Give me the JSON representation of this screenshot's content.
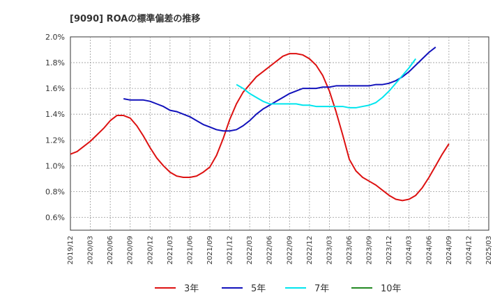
{
  "chart_data": {
    "type": "line",
    "title": "[9090]  ROAの標準偏差の推移",
    "xlabel": "",
    "ylabel": "",
    "ylim": [
      0.5,
      2.0
    ],
    "grid": true,
    "legend_position": "bottom",
    "y_ticks": [
      "0.6%",
      "0.8%",
      "1.0%",
      "1.2%",
      "1.4%",
      "1.6%",
      "1.8%",
      "2.0%"
    ],
    "x_ticks": [
      "2019/12",
      "2020/03",
      "2020/06",
      "2020/09",
      "2020/12",
      "2021/03",
      "2021/06",
      "2021/09",
      "2021/12",
      "2022/03",
      "2022/06",
      "2022/09",
      "2022/12",
      "2023/03",
      "2023/06",
      "2023/09",
      "2023/12",
      "2024/03",
      "2024/06",
      "2024/09",
      "2024/12",
      "2025/03"
    ],
    "series": [
      {
        "name": "3年",
        "color": "#dd1111",
        "start_index": 0,
        "values": [
          1.09,
          1.11,
          1.15,
          1.19,
          1.24,
          1.29,
          1.35,
          1.39,
          1.39,
          1.37,
          1.31,
          1.23,
          1.14,
          1.06,
          1.0,
          0.95,
          0.92,
          0.91,
          0.91,
          0.92,
          0.95,
          0.99,
          1.08,
          1.21,
          1.36,
          1.48,
          1.57,
          1.63,
          1.69,
          1.73,
          1.77,
          1.81,
          1.85,
          1.87,
          1.87,
          1.86,
          1.83,
          1.78,
          1.7,
          1.58,
          1.42,
          1.24,
          1.05,
          0.96,
          0.91,
          0.88,
          0.85,
          0.81,
          0.77,
          0.74,
          0.73,
          0.74,
          0.77,
          0.83,
          0.91,
          1.0,
          1.09,
          1.17
        ]
      },
      {
        "name": "5年",
        "color": "#1111bb",
        "start_index": 8,
        "values": [
          1.52,
          1.51,
          1.51,
          1.51,
          1.5,
          1.48,
          1.46,
          1.43,
          1.42,
          1.4,
          1.38,
          1.35,
          1.32,
          1.3,
          1.28,
          1.27,
          1.27,
          1.28,
          1.31,
          1.35,
          1.4,
          1.44,
          1.47,
          1.5,
          1.53,
          1.56,
          1.58,
          1.6,
          1.6,
          1.6,
          1.61,
          1.61,
          1.62,
          1.62,
          1.62,
          1.62,
          1.62,
          1.62,
          1.63,
          1.63,
          1.64,
          1.66,
          1.69,
          1.73,
          1.78,
          1.83,
          1.88,
          1.92
        ]
      },
      {
        "name": "7年",
        "color": "#00e5ee",
        "start_index": 25,
        "values": [
          1.63,
          1.6,
          1.56,
          1.53,
          1.5,
          1.48,
          1.48,
          1.48,
          1.48,
          1.48,
          1.47,
          1.47,
          1.46,
          1.46,
          1.46,
          1.46,
          1.46,
          1.45,
          1.45,
          1.46,
          1.47,
          1.49,
          1.53,
          1.58,
          1.64,
          1.7,
          1.76,
          1.83
        ]
      },
      {
        "name": "10年",
        "color": "#228822",
        "start_index": 0,
        "values": []
      }
    ]
  }
}
